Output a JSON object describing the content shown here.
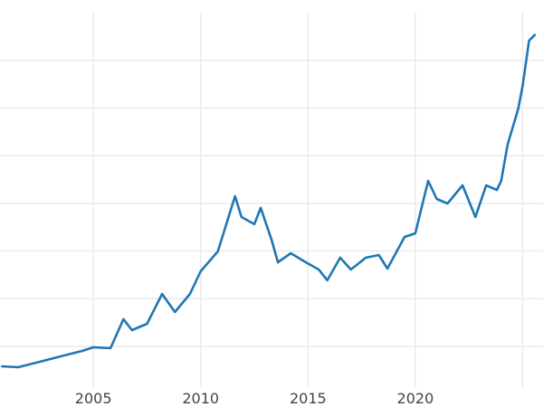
{
  "chart_data": {
    "type": "line",
    "title": "",
    "xlabel": "",
    "ylabel": "",
    "xlim": [
      2000.65,
      2025.65
    ],
    "ylim": [
      73,
      4000
    ],
    "x_ticks": [
      2005,
      2010,
      2015,
      2020,
      2025
    ],
    "x_tick_labels": [
      "2005",
      "2010",
      "2015",
      "2020",
      ""
    ],
    "y_gridlines": [
      500,
      1000,
      1500,
      2000,
      2500,
      3000,
      3500
    ],
    "y_tick_labels_shown": false,
    "grid": true,
    "color": "#1f77b4",
    "series": [
      {
        "x": [
          2000.7,
          2001.5,
          2002.5,
          2003.5,
          2004.5,
          2005.0,
          2005.8,
          2006.4,
          2006.8,
          2007.5,
          2008.2,
          2008.8,
          2009.5,
          2010.0,
          2010.8,
          2011.6,
          2011.9,
          2012.5,
          2012.8,
          2013.3,
          2013.6,
          2014.2,
          2014.9,
          2015.5,
          2015.9,
          2016.5,
          2017.0,
          2017.7,
          2018.3,
          2018.7,
          2019.5,
          2020.0,
          2020.6,
          2021.0,
          2021.5,
          2022.2,
          2022.8,
          2023.3,
          2023.8,
          2024.0,
          2024.3,
          2024.8,
          2025.0,
          2025.3,
          2025.6
        ],
        "y": [
          291,
          282,
          339,
          396,
          453,
          490,
          481,
          785,
          671,
          737,
          1050,
          860,
          1050,
          1287,
          1496,
          2075,
          1857,
          1781,
          1952,
          1620,
          1382,
          1477,
          1382,
          1306,
          1193,
          1430,
          1306,
          1430,
          1458,
          1316,
          1648,
          1686,
          2236,
          2046,
          1999,
          2189,
          1857,
          2189,
          2141,
          2236,
          2616,
          2995,
          3233,
          3707,
          3773
        ]
      }
    ]
  }
}
